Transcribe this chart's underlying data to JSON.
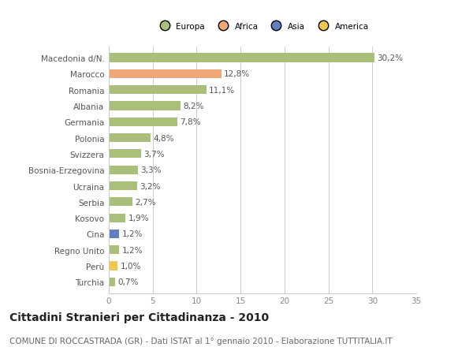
{
  "categories": [
    "Macedonia d/N.",
    "Marocco",
    "Romania",
    "Albania",
    "Germania",
    "Polonia",
    "Svizzera",
    "Bosnia-Erzegovina",
    "Ucraina",
    "Serbia",
    "Kosovo",
    "Cina",
    "Regno Unito",
    "Perù",
    "Turchia"
  ],
  "values": [
    30.2,
    12.8,
    11.1,
    8.2,
    7.8,
    4.8,
    3.7,
    3.3,
    3.2,
    2.7,
    1.9,
    1.2,
    1.2,
    1.0,
    0.7
  ],
  "labels": [
    "30,2%",
    "12,8%",
    "11,1%",
    "8,2%",
    "7,8%",
    "4,8%",
    "3,7%",
    "3,3%",
    "3,2%",
    "2,7%",
    "1,9%",
    "1,2%",
    "1,2%",
    "1,0%",
    "0,7%"
  ],
  "colors": [
    "#a8c07a",
    "#f0a878",
    "#a8c07a",
    "#a8c07a",
    "#a8c07a",
    "#a8c07a",
    "#a8c07a",
    "#a8c07a",
    "#a8c07a",
    "#a8c07a",
    "#a8c07a",
    "#6080c0",
    "#a8c07a",
    "#f0c850",
    "#a8c07a"
  ],
  "continent_colors": {
    "Europa": "#a8c07a",
    "Africa": "#f0a878",
    "Asia": "#6080c0",
    "America": "#f0c850"
  },
  "legend_labels": [
    "Europa",
    "Africa",
    "Asia",
    "America"
  ],
  "xlim": [
    0,
    35
  ],
  "xticks": [
    0,
    5,
    10,
    15,
    20,
    25,
    30,
    35
  ],
  "title": "Cittadini Stranieri per Cittadinanza - 2010",
  "subtitle": "COMUNE DI ROCCASTRADA (GR) - Dati ISTAT al 1° gennaio 2010 - Elaborazione TUTTITALIA.IT",
  "background_color": "#ffffff",
  "grid_color": "#cccccc",
  "bar_height": 0.55,
  "title_fontsize": 10,
  "subtitle_fontsize": 7.5,
  "label_fontsize": 7.5,
  "tick_fontsize": 7.5
}
